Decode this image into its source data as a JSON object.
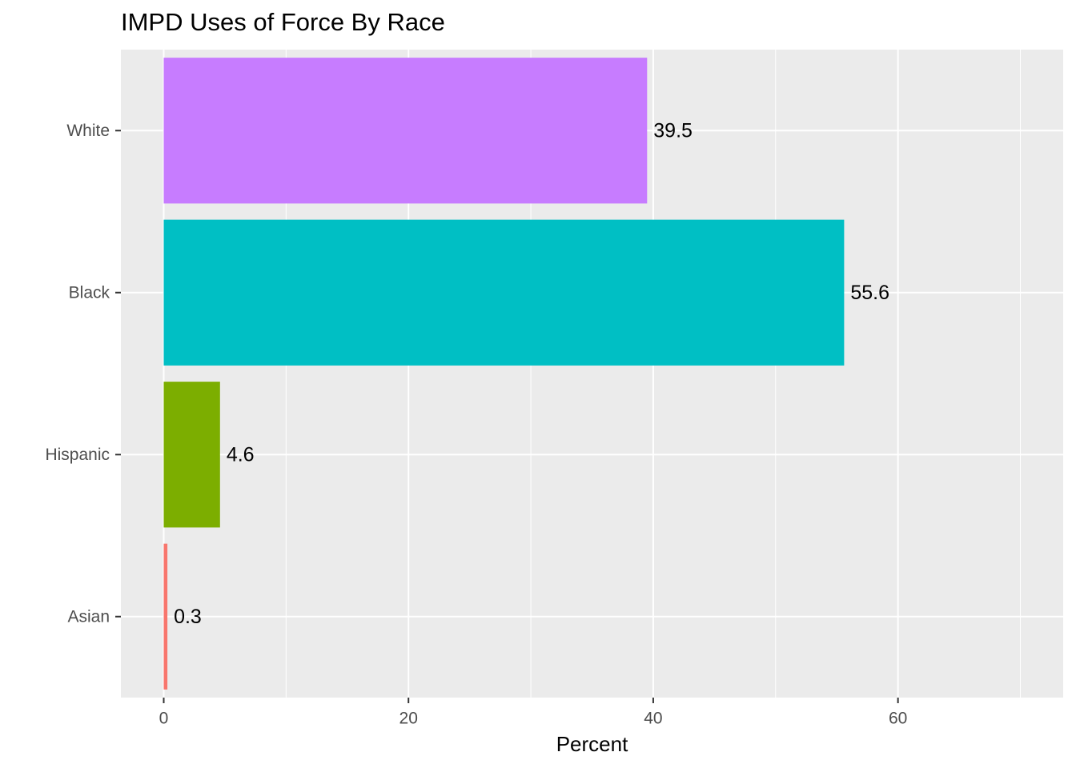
{
  "chart_data": {
    "type": "bar",
    "orientation": "horizontal",
    "title": "IMPD Uses of Force By Race",
    "xlabel": "Percent",
    "ylabel": "",
    "categories": [
      "Asian",
      "Hispanic",
      "Black",
      "White"
    ],
    "values": [
      0.3,
      4.6,
      55.6,
      39.5
    ],
    "data_labels": [
      "0.3",
      "4.6",
      "55.6",
      "39.5"
    ],
    "colors": [
      "#F8766D",
      "#7CAE00",
      "#00BFC4",
      "#C77CFF"
    ],
    "xlim": [
      -3.5,
      73.5
    ],
    "x_ticks": [
      0,
      20,
      40,
      60
    ],
    "x_minor_ticks": [
      10,
      30,
      50,
      70
    ],
    "grid": true,
    "legend": "none",
    "panel_background": "#EBEBEB",
    "grid_color": "#FFFFFF"
  }
}
